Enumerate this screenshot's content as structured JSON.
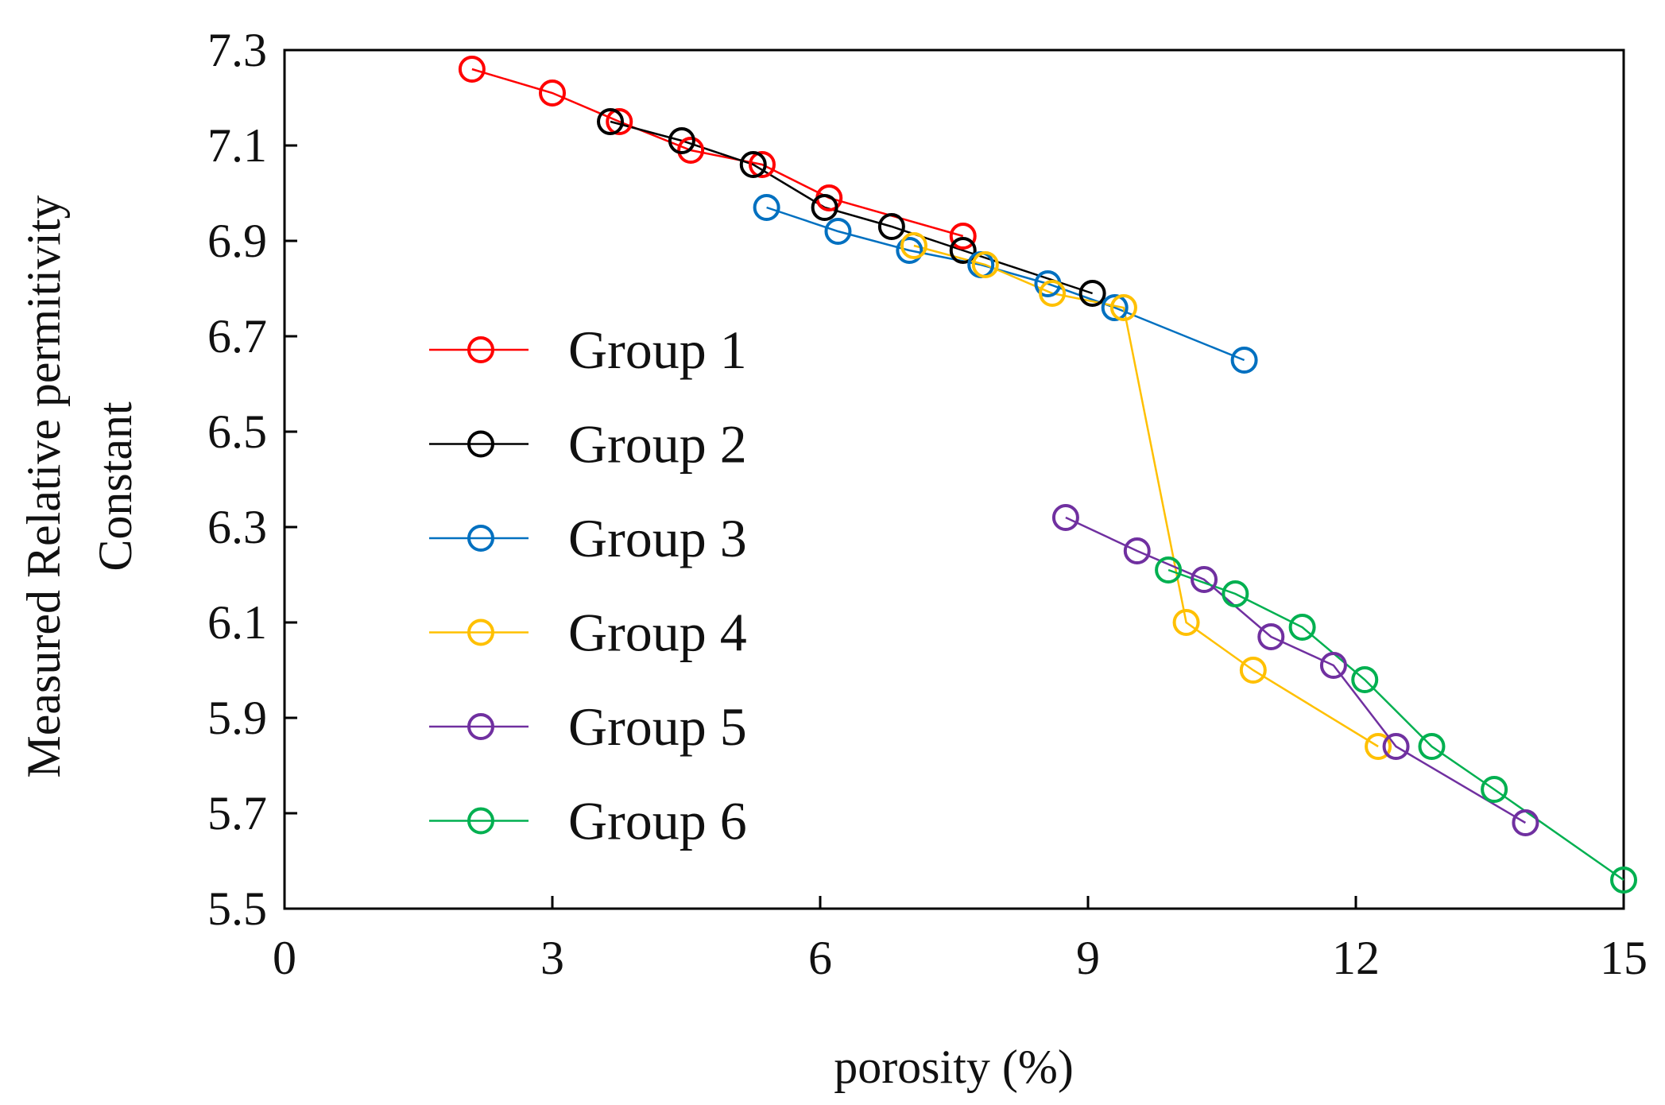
{
  "chart_data": {
    "type": "line",
    "title": "",
    "xlabel": "porosity (%)",
    "ylabel_lines": [
      "Measured Relative permitivity",
      "Constant"
    ],
    "xlim": [
      0,
      15
    ],
    "ylim": [
      5.5,
      7.3
    ],
    "x_ticks": [
      0,
      3,
      6,
      9,
      12,
      15
    ],
    "y_ticks": [
      5.5,
      5.7,
      5.9,
      6.1,
      6.3,
      6.5,
      6.7,
      6.9,
      7.1,
      7.3
    ],
    "x_tick_labels": [
      "0",
      "3",
      "6",
      "9",
      "12",
      "15"
    ],
    "y_tick_labels": [
      "5.5",
      "5.7",
      "5.9",
      "6.1",
      "6.3",
      "6.5",
      "6.7",
      "6.9",
      "7.1",
      "7.3"
    ],
    "grid": false,
    "legend_position": "left",
    "series": [
      {
        "name": "Group 1",
        "color": "#ff0000",
        "x": [
          2.1,
          3.0,
          3.75,
          4.55,
          5.35,
          6.1,
          7.6
        ],
        "y": [
          7.26,
          7.21,
          7.15,
          7.09,
          7.06,
          6.99,
          6.91
        ]
      },
      {
        "name": "Group 2",
        "color": "#000000",
        "x": [
          3.65,
          4.45,
          5.25,
          6.05,
          6.8,
          7.6,
          9.05
        ],
        "y": [
          7.15,
          7.11,
          7.06,
          6.97,
          6.93,
          6.88,
          6.79
        ]
      },
      {
        "name": "Group 3",
        "color": "#0070c0",
        "x": [
          5.4,
          6.2,
          7.0,
          7.8,
          8.55,
          9.3,
          10.75
        ],
        "y": [
          6.97,
          6.92,
          6.88,
          6.85,
          6.81,
          6.76,
          6.65
        ]
      },
      {
        "name": "Group 4",
        "color": "#ffc000",
        "x": [
          7.05,
          7.85,
          8.6,
          9.4,
          10.1,
          10.85,
          12.25
        ],
        "y": [
          6.89,
          6.85,
          6.79,
          6.76,
          6.1,
          6.0,
          5.84
        ]
      },
      {
        "name": "Group 5",
        "color": "#7030a0",
        "x": [
          8.75,
          9.55,
          10.3,
          11.05,
          11.75,
          12.45,
          13.9
        ],
        "y": [
          6.32,
          6.25,
          6.19,
          6.07,
          6.01,
          5.84,
          5.68
        ]
      },
      {
        "name": "Group 6",
        "color": "#00b050",
        "x": [
          9.9,
          10.65,
          11.4,
          12.1,
          12.85,
          13.55,
          15.0
        ],
        "y": [
          6.21,
          6.16,
          6.09,
          5.98,
          5.84,
          5.75,
          5.56
        ]
      }
    ]
  }
}
